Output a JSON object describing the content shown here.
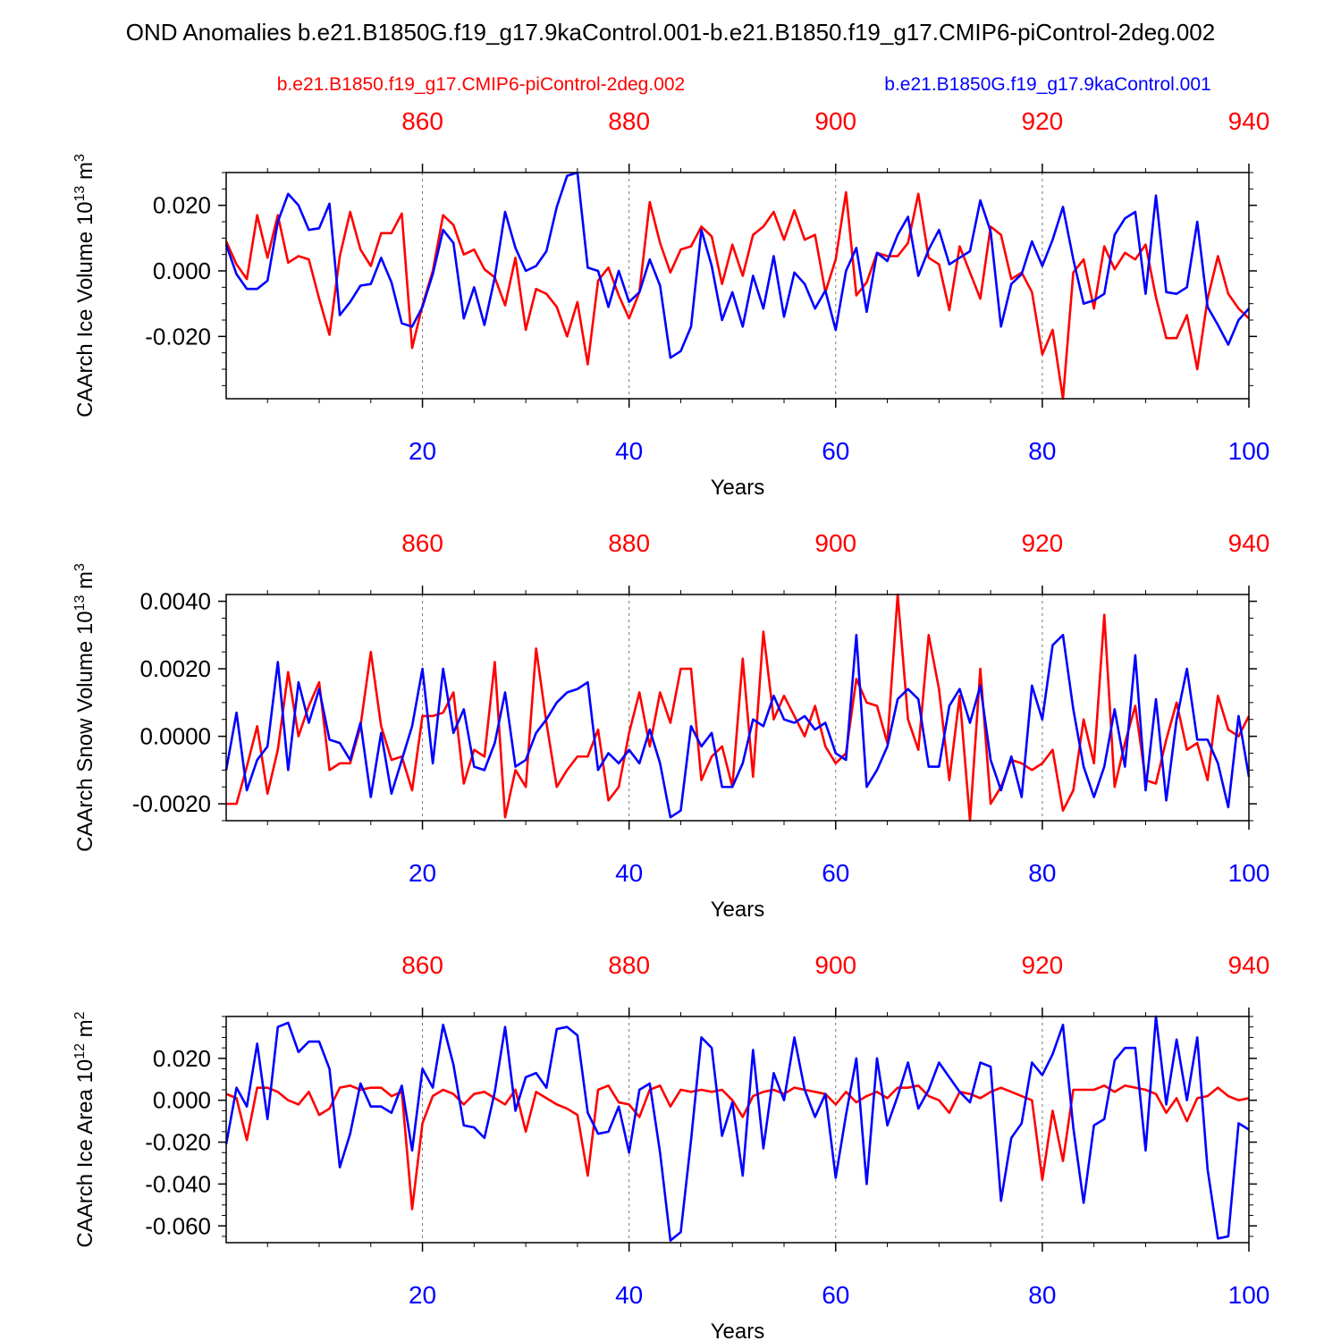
{
  "title": "OND Anomalies b.e21.B1850G.f19_g17.9kaControl.001-b.e21.B1850.f19_g17.CMIP6-piControl-2deg.002",
  "legend": {
    "red_label": "b.e21.B1850.f19_g17.CMIP6-piControl-2deg.002",
    "blue_label": "b.e21.B1850G.f19_g17.9kaControl.001"
  },
  "colors": {
    "red": "#ff0000",
    "blue": "#0000ff",
    "axis": "#000000"
  },
  "chart_data": [
    {
      "type": "line",
      "ylabel": "CAArch Ice Volume",
      "yunit_base": "10",
      "yunit_exp": "13",
      "yunit_suffix": " m",
      "yunit_pow": "3",
      "xlabel": "Years",
      "xlim": [
        1,
        100
      ],
      "ylim": [
        -0.039,
        0.03
      ],
      "y_ticks": [
        "0.020",
        "0.000",
        "-0.020"
      ],
      "y_tick_values": [
        0.02,
        0.0,
        -0.02
      ],
      "x_ticks": [
        "20",
        "40",
        "60",
        "80",
        "100"
      ],
      "top_ticks": [
        "860",
        "880",
        "900",
        "920",
        "940"
      ],
      "series": [
        {
          "name": "b.e21.B1850G.f19_g17.9kaControl.001",
          "color": "blue",
          "values": [
            0.008,
            -0.001,
            -0.0055,
            -0.0055,
            -0.003,
            0.015,
            0.0235,
            0.02,
            0.0125,
            0.013,
            0.0205,
            -0.0135,
            -0.0095,
            -0.0045,
            -0.004,
            0.004,
            -0.0035,
            -0.016,
            -0.017,
            -0.011,
            -0.001,
            0.0125,
            0.0085,
            -0.0145,
            -0.005,
            -0.0165,
            -0.002,
            0.018,
            0.007,
            0.0,
            0.0015,
            0.006,
            0.0195,
            0.029,
            0.03,
            0.001,
            0.0,
            -0.011,
            0.0,
            -0.0095,
            -0.0065,
            0.0035,
            -0.0045,
            -0.0265,
            -0.0245,
            -0.017,
            0.0125,
            0.0015,
            -0.015,
            -0.0065,
            -0.017,
            -0.0015,
            -0.0115,
            0.0045,
            -0.014,
            -0.0005,
            -0.004,
            -0.0115,
            -0.006,
            -0.018,
            0.0,
            0.007,
            -0.0125,
            0.0055,
            0.003,
            0.011,
            0.0165,
            -0.0015,
            0.0065,
            0.0125,
            0.002,
            0.004,
            0.006,
            0.0215,
            0.012,
            -0.017,
            -0.004,
            -0.001,
            0.009,
            0.0015,
            0.0095,
            0.0195,
            0.0035,
            -0.01,
            -0.009,
            -0.007,
            0.011,
            0.016,
            0.018,
            -0.007,
            0.023,
            -0.0065,
            -0.007,
            -0.005,
            0.015,
            -0.011,
            -0.0165,
            -0.0225,
            -0.015,
            -0.0115
          ]
        },
        {
          "name": "b.e21.B1850.f19_g17.CMIP6-piControl-2deg.002",
          "color": "red",
          "values": [
            0.009,
            0.002,
            -0.0025,
            0.017,
            0.004,
            0.017,
            0.0025,
            0.0045,
            0.0035,
            -0.0085,
            -0.0195,
            0.0045,
            0.018,
            0.0065,
            0.0015,
            0.0115,
            0.0115,
            0.0175,
            -0.0235,
            -0.0105,
            0.0,
            0.017,
            0.014,
            0.005,
            0.0065,
            0.0005,
            -0.002,
            -0.0105,
            0.004,
            -0.018,
            -0.0055,
            -0.007,
            -0.011,
            -0.02,
            -0.0095,
            -0.0285,
            -0.003,
            0.001,
            -0.0075,
            -0.0145,
            -0.0065,
            0.021,
            0.0085,
            -0.0005,
            0.0065,
            0.0075,
            0.0135,
            0.0105,
            -0.004,
            0.008,
            -0.0015,
            0.011,
            0.0135,
            0.018,
            0.0095,
            0.0185,
            0.0095,
            0.011,
            -0.0065,
            0.0035,
            0.024,
            -0.0075,
            -0.0035,
            0.0055,
            0.0045,
            0.0045,
            0.0085,
            0.0235,
            0.004,
            0.002,
            -0.012,
            0.0075,
            -0.0005,
            -0.0085,
            0.0135,
            0.011,
            -0.0025,
            -0.0005,
            -0.0065,
            -0.0255,
            -0.018,
            -0.039,
            -0.0005,
            0.0035,
            -0.0115,
            0.0075,
            0.0005,
            0.0055,
            0.0035,
            0.008,
            -0.008,
            -0.0205,
            -0.0205,
            -0.0135,
            -0.03,
            -0.0085,
            0.0045,
            -0.007,
            -0.0115,
            -0.0145
          ]
        }
      ]
    },
    {
      "type": "line",
      "ylabel": "CAArch Snow Volume",
      "yunit_base": "10",
      "yunit_exp": "13",
      "yunit_suffix": " m",
      "yunit_pow": "3",
      "xlabel": "Years",
      "xlim": [
        1,
        100
      ],
      "ylim": [
        -0.0025,
        0.0042
      ],
      "y_ticks": [
        "0.0040",
        "0.0020",
        "0.0000",
        "-0.0020"
      ],
      "y_tick_values": [
        0.004,
        0.002,
        0.0,
        -0.002
      ],
      "x_ticks": [
        "20",
        "40",
        "60",
        "80",
        "100"
      ],
      "top_ticks": [
        "860",
        "880",
        "900",
        "920",
        "940"
      ],
      "series": [
        {
          "name": "b.e21.B1850G.f19_g17.9kaControl.001",
          "color": "blue",
          "values": [
            -0.001,
            0.0007,
            -0.0016,
            -0.0007,
            -0.0003,
            0.0022,
            -0.001,
            0.0016,
            0.0004,
            0.0014,
            -0.0001,
            -0.0002,
            -0.0007,
            0.0004,
            -0.0018,
            0.0001,
            -0.0017,
            -0.0007,
            0.0003,
            0.002,
            -0.0008,
            0.002,
            0.0001,
            0.0008,
            -0.0009,
            -0.001,
            -0.0002,
            0.0013,
            -0.0009,
            -0.0007,
            0.0001,
            0.0005,
            0.001,
            0.0013,
            0.0014,
            0.0016,
            -0.001,
            -0.0005,
            -0.0008,
            -0.0004,
            -0.0008,
            0.0002,
            -0.0008,
            -0.0024,
            -0.0022,
            0.0003,
            -0.0003,
            0.0001,
            -0.0015,
            -0.0015,
            -0.0008,
            0.0005,
            0.0003,
            0.0012,
            0.0005,
            0.0004,
            0.0006,
            0.0002,
            0.0004,
            -0.0005,
            -0.0007,
            0.003,
            -0.0015,
            -0.001,
            -0.0003,
            0.0011,
            0.0014,
            0.0011,
            -0.0009,
            -0.0009,
            0.0009,
            0.0014,
            0.0004,
            0.0015,
            -0.0007,
            -0.0016,
            -0.0006,
            -0.0018,
            0.0015,
            0.0005,
            0.0027,
            0.003,
            0.0008,
            -0.0009,
            -0.0018,
            -0.0009,
            0.0008,
            -0.0009,
            0.0024,
            -0.0016,
            0.0011,
            -0.0019,
            0.0005,
            0.002,
            -0.0001,
            -0.0001,
            -0.0008,
            -0.0021,
            0.0006,
            -0.0012
          ]
        },
        {
          "name": "b.e21.B1850.f19_g17.CMIP6-piControl-2deg.002",
          "color": "red",
          "values": [
            -0.002,
            -0.002,
            -0.0009,
            0.0003,
            -0.0017,
            -0.0004,
            0.0019,
            0.0,
            0.0009,
            0.0016,
            -0.001,
            -0.0008,
            -0.0008,
            0.0003,
            0.0025,
            0.0003,
            -0.0007,
            -0.0006,
            -0.0016,
            0.0006,
            0.0006,
            0.0007,
            0.0013,
            -0.0014,
            -0.0004,
            -0.0006,
            0.0022,
            -0.0024,
            -0.001,
            -0.0015,
            0.0026,
            0.0004,
            -0.0015,
            -0.001,
            -0.0006,
            -0.0006,
            0.0002,
            -0.0019,
            -0.0015,
            0.0001,
            0.0013,
            -0.0003,
            0.0013,
            0.0004,
            0.002,
            0.002,
            -0.0013,
            -0.0006,
            -0.0003,
            -0.0015,
            0.0023,
            -0.0012,
            0.0031,
            0.0005,
            0.0012,
            0.0006,
            0.0,
            0.0009,
            -0.0003,
            -0.0008,
            -0.0005,
            0.0017,
            0.001,
            0.0009,
            -0.0002,
            0.0042,
            0.0005,
            -0.0004,
            0.003,
            0.0014,
            -0.0013,
            0.0012,
            -0.0025,
            0.002,
            -0.002,
            -0.0015,
            -0.0007,
            -0.0008,
            -0.001,
            -0.0008,
            -0.0004,
            -0.0022,
            -0.0016,
            0.0005,
            -0.0008,
            0.0036,
            -0.0015,
            -0.0002,
            0.0009,
            -0.0013,
            -0.0014,
            -0.0001,
            0.001,
            -0.0004,
            -0.0002,
            -0.0013,
            0.0012,
            0.0002,
            0.0,
            0.0006
          ]
        }
      ]
    },
    {
      "type": "line",
      "ylabel": "CAArch Ice Area",
      "yunit_base": "10",
      "yunit_exp": "12",
      "yunit_suffix": " m",
      "yunit_pow": "2",
      "xlabel": "Years",
      "xlim": [
        1,
        100
      ],
      "ylim": [
        -0.068,
        0.04
      ],
      "y_ticks": [
        "0.020",
        "0.000",
        "-0.020",
        "-0.040",
        "-0.060"
      ],
      "y_tick_values": [
        0.02,
        0.0,
        -0.02,
        -0.04,
        -0.06
      ],
      "x_ticks": [
        "20",
        "40",
        "60",
        "80",
        "100"
      ],
      "top_ticks": [
        "860",
        "880",
        "900",
        "920",
        "940"
      ],
      "series": [
        {
          "name": "b.e21.B1850G.f19_g17.9kaControl.001",
          "color": "blue",
          "values": [
            -0.021,
            0.006,
            -0.003,
            0.027,
            -0.009,
            0.035,
            0.037,
            0.023,
            0.028,
            0.028,
            0.015,
            -0.032,
            -0.016,
            0.008,
            -0.003,
            -0.003,
            -0.006,
            0.007,
            -0.024,
            0.015,
            0.006,
            0.036,
            0.017,
            -0.012,
            -0.013,
            -0.018,
            0.004,
            0.035,
            -0.005,
            0.011,
            0.013,
            0.006,
            0.034,
            0.035,
            0.031,
            -0.006,
            -0.016,
            -0.015,
            -0.003,
            -0.025,
            0.005,
            0.008,
            -0.025,
            -0.067,
            -0.063,
            -0.019,
            0.03,
            0.025,
            -0.017,
            -0.001,
            -0.036,
            0.024,
            -0.023,
            0.013,
            0.0,
            0.03,
            0.005,
            -0.008,
            0.003,
            -0.037,
            -0.007,
            0.02,
            -0.04,
            0.02,
            -0.012,
            0.002,
            0.018,
            -0.004,
            0.005,
            0.018,
            0.011,
            0.004,
            -0.001,
            0.018,
            0.016,
            -0.048,
            -0.018,
            -0.011,
            0.018,
            0.012,
            0.022,
            0.036,
            -0.013,
            -0.049,
            -0.012,
            -0.009,
            0.019,
            0.025,
            0.025,
            -0.024,
            0.04,
            -0.002,
            0.029,
            0.0,
            0.03,
            -0.033,
            -0.066,
            -0.065,
            -0.011,
            -0.014
          ]
        },
        {
          "name": "b.e21.B1850.f19_g17.CMIP6-piControl-2deg.002",
          "color": "red",
          "values": [
            0.003,
            0.001,
            -0.019,
            0.006,
            0.006,
            0.004,
            0.0,
            -0.002,
            0.004,
            -0.007,
            -0.004,
            0.006,
            0.007,
            0.005,
            0.006,
            0.006,
            0.002,
            0.004,
            -0.052,
            -0.011,
            0.002,
            0.005,
            0.003,
            -0.002,
            0.003,
            0.004,
            0.001,
            -0.002,
            0.005,
            -0.015,
            0.004,
            0.001,
            -0.002,
            -0.004,
            -0.007,
            -0.036,
            0.005,
            0.007,
            -0.001,
            -0.002,
            -0.008,
            0.005,
            0.007,
            -0.003,
            0.005,
            0.004,
            0.005,
            0.004,
            0.005,
            0.0,
            -0.008,
            0.002,
            0.004,
            0.005,
            0.003,
            0.006,
            0.005,
            0.004,
            0.003,
            -0.002,
            0.004,
            -0.001,
            0.002,
            0.004,
            0.001,
            0.006,
            0.006,
            0.007,
            0.002,
            0.0,
            -0.006,
            0.004,
            0.003,
            0.001,
            0.004,
            0.006,
            0.004,
            0.002,
            0.0,
            -0.038,
            -0.005,
            -0.029,
            0.005,
            0.005,
            0.005,
            0.007,
            0.004,
            0.007,
            0.006,
            0.005,
            0.003,
            -0.006,
            0.001,
            -0.01,
            0.001,
            0.002,
            0.006,
            0.002,
            0.0,
            0.001
          ]
        }
      ]
    }
  ]
}
